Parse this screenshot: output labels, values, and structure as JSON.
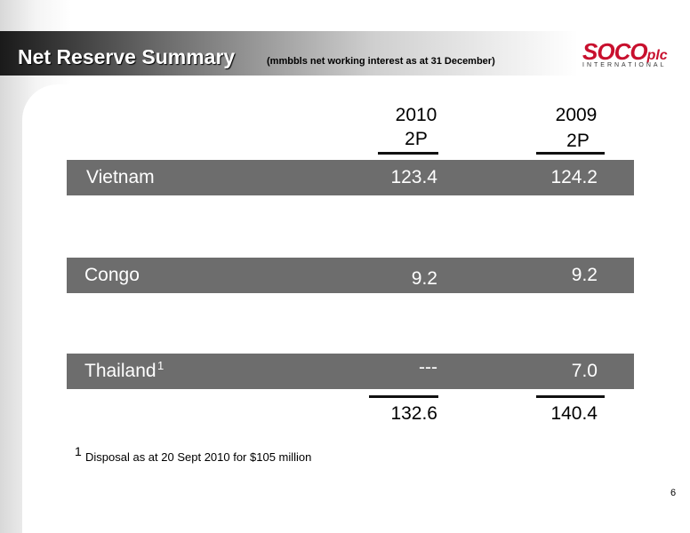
{
  "header": {
    "title": "Net Reserve Summary",
    "subtitle": "(mmbbls net working interest as at 31 December)",
    "logo": {
      "name": "SOCO",
      "suffix": "plc",
      "tagline": "INTERNATIONAL"
    }
  },
  "table": {
    "columns": [
      {
        "year": "2010",
        "label": "2P"
      },
      {
        "year": "2009",
        "label": "2P"
      }
    ],
    "rows": [
      {
        "name": "Vietnam",
        "note": null,
        "values": [
          "123.4",
          "124.2"
        ]
      },
      {
        "name": "Congo",
        "note": null,
        "values": [
          "9.2",
          "9.2"
        ]
      },
      {
        "name": "Thailand",
        "note": "1",
        "values": [
          "---",
          "7.0"
        ]
      }
    ],
    "totals": [
      "132.6",
      "140.4"
    ]
  },
  "footnote": {
    "marker": "1",
    "text": "Disposal as at 20 Sept 2010 for $105 million"
  },
  "page_number": "6"
}
